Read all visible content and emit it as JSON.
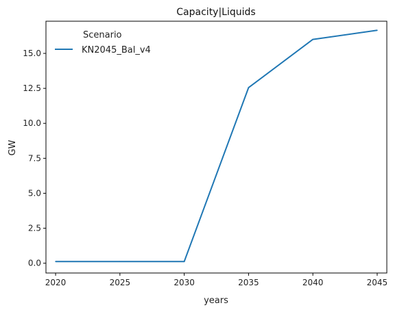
{
  "chart_data": {
    "type": "line",
    "title": "Capacity|Liquids",
    "xlabel": "years",
    "ylabel": "GW",
    "x": [
      2020,
      2025,
      2030,
      2035,
      2040,
      2045
    ],
    "xticks": [
      "2020",
      "2025",
      "2030",
      "2035",
      "2040",
      "2045"
    ],
    "yticks": [
      "0.0",
      "2.5",
      "5.0",
      "7.5",
      "10.0",
      "12.5",
      "15.0"
    ],
    "xlim": [
      2019.25,
      2045.75
    ],
    "ylim": [
      -0.7,
      17.3
    ],
    "grid": false,
    "legend": {
      "title": "Scenario",
      "position": "top-left"
    },
    "series": [
      {
        "name": "KN2045_Bal_v4",
        "color": "#1f77b4",
        "values": [
          0.12,
          0.12,
          0.12,
          12.55,
          16.0,
          16.65
        ]
      }
    ]
  }
}
